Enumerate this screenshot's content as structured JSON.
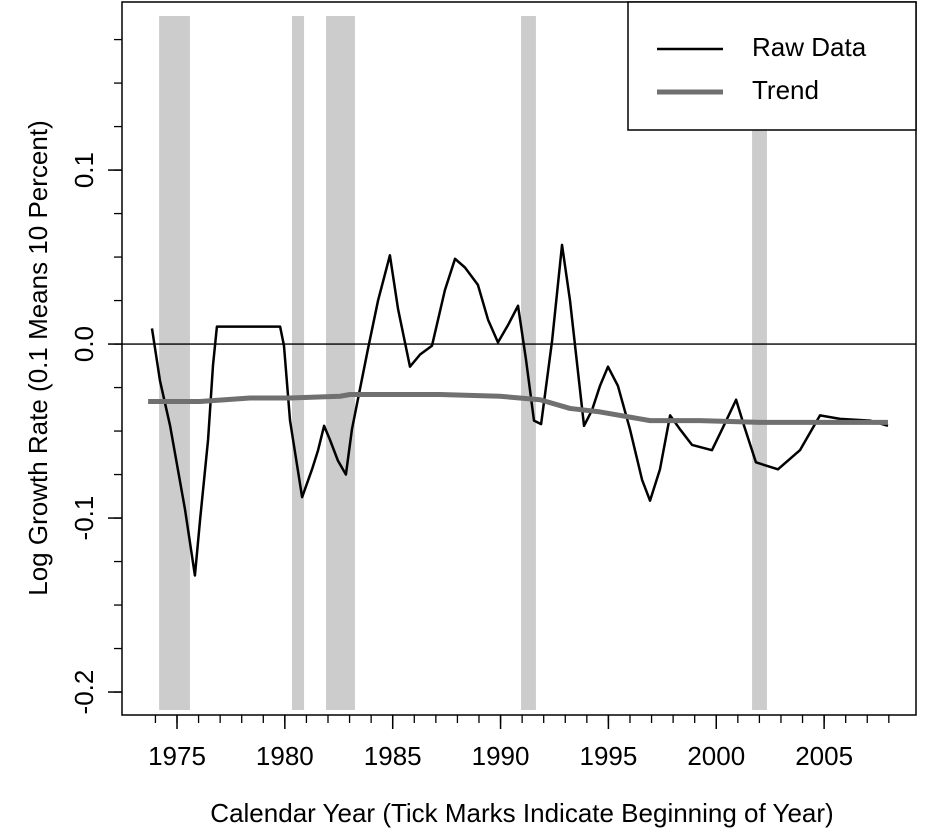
{
  "chart_data": {
    "type": "line",
    "xlabel": "Calendar Year (Tick Marks Indicate Beginning of Year)",
    "ylabel": "Log Growth Rate (0.1 Means 10 Percent)",
    "xlim": [
      1972.45,
      2009.26
    ],
    "ylim": [
      -0.2132,
      0.1966
    ],
    "xticks": [
      1975,
      1980,
      1985,
      1990,
      1995,
      2000,
      2005
    ],
    "x_minor_ticks": [
      1974,
      1975,
      1976,
      1977,
      1978,
      1979,
      1980,
      1981,
      1982,
      1983,
      1984,
      1985,
      1986,
      1987,
      1988,
      1989,
      1990,
      1991,
      1992,
      1993,
      1994,
      1995,
      1996,
      1997,
      1998,
      1999,
      2000,
      2001,
      2002,
      2003,
      2004,
      2005,
      2006,
      2007,
      2008
    ],
    "yticks": [
      -0.2,
      -0.1,
      {
        "value": 0,
        "label": "0.0"
      },
      0.1
    ],
    "y_minor_ticks": [
      -0.2,
      -0.175,
      -0.15,
      -0.125,
      -0.1,
      -0.075,
      -0.05,
      -0.025,
      0,
      0.025,
      0.05,
      0.075,
      0.1,
      0.125,
      0.15,
      0.175
    ],
    "hline": 0,
    "shaded_periods": [
      [
        1974.17,
        1975.6
      ],
      [
        1980.33,
        1980.89
      ],
      [
        1981.91,
        1983.25
      ],
      [
        1990.95,
        1991.64
      ],
      [
        2001.66,
        2002.35
      ]
    ],
    "shade_color": "#cccccc",
    "legend": "top-right",
    "series": [
      {
        "name": "Raw Data",
        "color": "#000000",
        "x": [
          1973.84,
          1974.21,
          1974.68,
          1975.37,
          1975.83,
          1976.07,
          1976.44,
          1976.67,
          1976.85,
          1979.78,
          1979.96,
          1980.24,
          1980.8,
          1981.26,
          1981.54,
          1981.82,
          1982.09,
          1982.46,
          1982.83,
          1983.11,
          1983.48,
          1983.85,
          1984.32,
          1984.87,
          1985.25,
          1985.8,
          1986.27,
          1986.82,
          1987.42,
          1987.89,
          1988.35,
          1988.95,
          1989.42,
          1989.88,
          1990.35,
          1990.81,
          1991.18,
          1991.55,
          1991.88,
          1992.39,
          1992.85,
          1993.22,
          1993.87,
          1994.24,
          1994.61,
          1994.98,
          1995.44,
          1996.0,
          1996.56,
          1996.93,
          1997.39,
          1997.86,
          1998.32,
          1998.88,
          1999.8,
          2000.27,
          2000.92,
          2001.29,
          2001.84,
          2002.86,
          2003.88,
          2004.81,
          2005.74,
          2007.13,
          2007.96
        ],
        "values": [
          0.009,
          -0.021,
          -0.047,
          -0.095,
          -0.133,
          -0.101,
          -0.055,
          -0.012,
          0.01,
          0.01,
          -0.001,
          -0.044,
          -0.088,
          -0.072,
          -0.061,
          -0.047,
          -0.055,
          -0.067,
          -0.075,
          -0.049,
          -0.026,
          -0.003,
          0.025,
          0.051,
          0.02,
          -0.013,
          -0.006,
          -0.001,
          0.031,
          0.049,
          0.044,
          0.034,
          0.014,
          0.001,
          0.011,
          0.022,
          -0.009,
          -0.044,
          -0.046,
          0.002,
          0.057,
          0.025,
          -0.047,
          -0.038,
          -0.024,
          -0.013,
          -0.024,
          -0.049,
          -0.078,
          -0.09,
          -0.072,
          -0.041,
          -0.049,
          -0.058,
          -0.061,
          -0.049,
          -0.032,
          -0.047,
          -0.068,
          -0.072,
          -0.061,
          -0.041,
          -0.043,
          -0.044,
          -0.047
        ]
      },
      {
        "name": "Trend",
        "color": "#707070",
        "x": [
          1973.66,
          1976.07,
          1978.38,
          1980.24,
          1982.56,
          1983.02,
          1987.19,
          1989.97,
          1991.83,
          1993.22,
          1994.61,
          1996.93,
          1999.25,
          2002.03,
          2004.81,
          2007.96
        ],
        "values": [
          -0.033,
          -0.033,
          -0.031,
          -0.031,
          -0.03,
          -0.029,
          -0.029,
          -0.03,
          -0.032,
          -0.037,
          -0.039,
          -0.044,
          -0.044,
          -0.045,
          -0.045,
          -0.045
        ]
      }
    ]
  }
}
